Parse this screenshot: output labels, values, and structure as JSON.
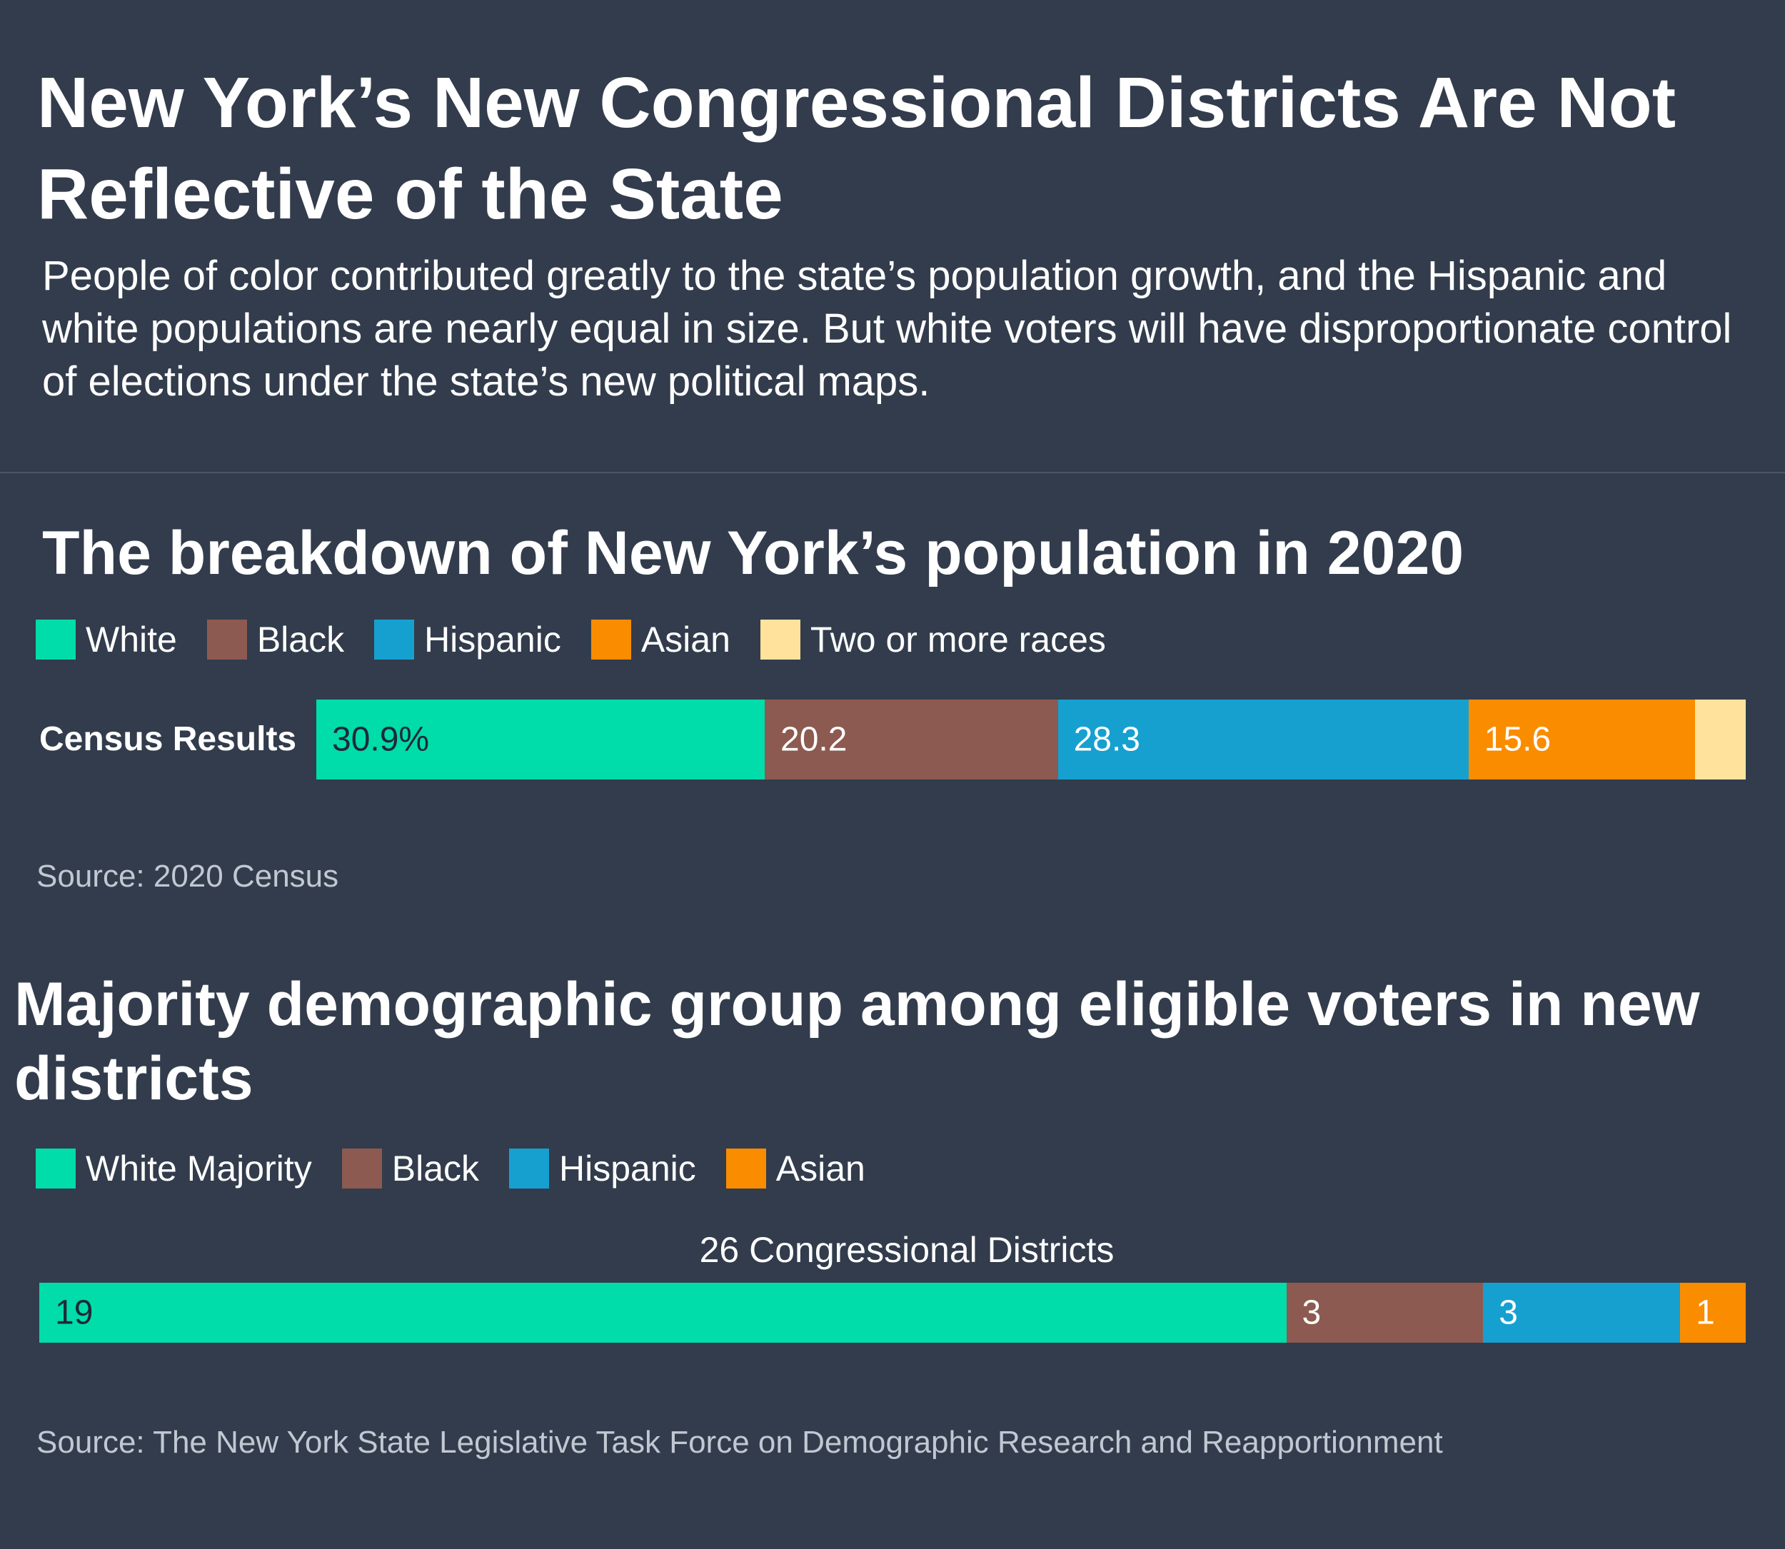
{
  "header": {
    "title": "New York’s New Congressional Districts Are Not Reflective of the State",
    "subtitle": "People of color contributed greatly to the state’s population growth, and the Hispanic and white populations are nearly equal in size. But white voters will have disproportionate control of elections under the state’s new political maps."
  },
  "colors": {
    "background": "#323c4c",
    "white": "#00dcaa",
    "black": "#8c5a50",
    "hispanic": "#16a0d0",
    "asian": "#fa8c00",
    "two_or_more": "#ffe39c"
  },
  "chart_data": [
    {
      "type": "bar",
      "orientation": "horizontal-stacked",
      "title": "The breakdown of New York’s population in 2020",
      "categories": [
        "Census Results"
      ],
      "legend": [
        "White",
        "Black",
        "Hispanic",
        "Asian",
        "Two or more races"
      ],
      "series": [
        {
          "name": "White",
          "values": [
            30.9
          ],
          "label": "30.9%",
          "color": "#00dcaa",
          "text_color": "#1e2a38"
        },
        {
          "name": "Black",
          "values": [
            20.2
          ],
          "label": "20.2",
          "color": "#8c5a50",
          "text_color": "#ffffff"
        },
        {
          "name": "Hispanic",
          "values": [
            28.3
          ],
          "label": "28.3",
          "color": "#16a0d0",
          "text_color": "#ffffff"
        },
        {
          "name": "Asian",
          "values": [
            15.6
          ],
          "label": "15.6",
          "color": "#fa8c00",
          "text_color": "#ffffff"
        },
        {
          "name": "Two or more races",
          "values": [
            3.5
          ],
          "label": "",
          "color": "#ffe39c",
          "text_color": "#1e2a38"
        }
      ],
      "source": "Source: 2020 Census"
    },
    {
      "type": "bar",
      "orientation": "horizontal-stacked",
      "title": "Majority demographic group among eligible voters in new districts",
      "header": "26 Congressional Districts",
      "legend": [
        "White Majority",
        "Black",
        "Hispanic",
        "Asian"
      ],
      "series": [
        {
          "name": "White Majority",
          "values": [
            19
          ],
          "label": "19",
          "color": "#00dcaa",
          "text_color": "#1e2a38"
        },
        {
          "name": "Black",
          "values": [
            3
          ],
          "label": "3",
          "color": "#8c5a50",
          "text_color": "#ffffff"
        },
        {
          "name": "Hispanic",
          "values": [
            3
          ],
          "label": "3",
          "color": "#16a0d0",
          "text_color": "#ffffff"
        },
        {
          "name": "Asian",
          "values": [
            1
          ],
          "label": "1",
          "color": "#fa8c00",
          "text_color": "#ffffff"
        }
      ],
      "source": "Source: The New York State Legislative Task Force on Demographic Research and Reapportionment"
    }
  ]
}
